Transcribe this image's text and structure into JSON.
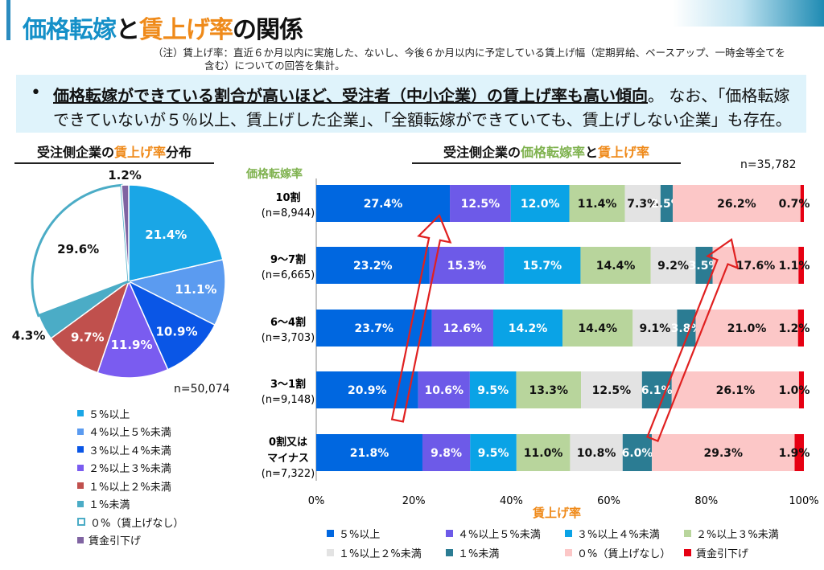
{
  "header": {
    "title_part1": "価格転嫁",
    "title_part2": "と",
    "title_part3": "賃上げ率",
    "title_part4": "の関係",
    "note_line1": "（注）賃上げ率：直近６か月以内に実施した、ないし、今後６か月以内に予定している賃上げ幅（定期昇給、ベースアップ、一時金等全てを",
    "note_line2": "含む）についての回答を集計。"
  },
  "summary": {
    "bullet": "•",
    "line1_emph": "価格転嫁ができている割合が高いほど、受注者（中小企業）の賃上げ率も高い傾向",
    "line1_rest": "。 なお、「価格転嫁",
    "line2": "できていないが５％以上、賃上げした企業」、「全額転嫁ができていても、賃上げしない企業」も存在。"
  },
  "pie_title": {
    "pre": "受注側企業の",
    "accent": "賃上げ率",
    "post": "分布"
  },
  "bar_title": {
    "pre": "受注側企業の",
    "accent1": "価格転嫁率",
    "mid": "と",
    "accent2": "賃上げ率"
  },
  "bar_ylabel": "価格転嫁率",
  "bar_xlabel": "賃上げ率",
  "bar_n": "n=35,782",
  "pie_n": "n=50,074",
  "categories": [
    "５%以上",
    "４%以上５%未満",
    "３%以上４%未満",
    "２%以上３%未満",
    "１%以上２%未満",
    "１%未満",
    "０%（賃上げなし）",
    "賃金引下げ"
  ],
  "colors": {
    "bar": [
      "#0067e0",
      "#6d5ae8",
      "#0aa3e6",
      "#b8d59c",
      "#e3e3e3",
      "#2b7c93",
      "#fcc7c7",
      "#e60012"
    ],
    "pie": [
      "#1aa6e6",
      "#5b9bf0",
      "#0a56e6",
      "#7a5cf0",
      "#c0504d",
      "#4bacc6",
      "#ffffff",
      "#8064a2"
    ],
    "pie_outline": "#4bacc6",
    "arrow": "#e02020",
    "title_blue": "#1590c8",
    "title_orange": "#ef8a1a",
    "green": "#7fb24f"
  },
  "chart_data": [
    {
      "type": "pie",
      "title": "受注側企業の賃上げ率分布",
      "labels": [
        "５%以上",
        "４%以上５%未満",
        "３%以上４%未満",
        "２%以上３%未満",
        "１%以上２%未満",
        "１%未満",
        "０%（賃上げなし）",
        "賃金引下げ"
      ],
      "values": [
        21.4,
        11.1,
        10.9,
        11.9,
        9.7,
        4.3,
        29.6,
        1.2
      ],
      "value_labels": [
        "21.4%",
        "11.1%",
        "10.9%",
        "11.9%",
        "9.7%",
        "4.3%",
        "29.6%",
        "1.2%"
      ],
      "n": "n=50,074",
      "legend": "bottom-left"
    },
    {
      "type": "bar",
      "orientation": "horizontal",
      "stacked": "percent",
      "title": "受注側企業の価格転嫁率と賃上げ率",
      "ylabel": "価格転嫁率",
      "xlabel": "賃上げ率",
      "xlim": [
        0,
        100
      ],
      "xticks": [
        "0%",
        "20%",
        "40%",
        "60%",
        "80%",
        "100%"
      ],
      "categories": [
        {
          "label": "10割",
          "n": "(n=8,944)"
        },
        {
          "label": "9～7割",
          "n": "(n=6,665)"
        },
        {
          "label": "6～4割",
          "n": "(n=3,703)"
        },
        {
          "label": "3～1割",
          "n": "(n=9,148)"
        },
        {
          "label": "0割又は",
          "label2": "マイナス",
          "n": "(n=7,322)"
        }
      ],
      "series": [
        {
          "name": "５%以上",
          "values": [
            27.4,
            23.2,
            23.7,
            20.9,
            21.8
          ]
        },
        {
          "name": "４%以上５%未満",
          "values": [
            12.5,
            15.3,
            12.6,
            10.6,
            9.8
          ]
        },
        {
          "name": "３%以上４%未満",
          "values": [
            12.0,
            15.7,
            14.2,
            9.5,
            9.5
          ]
        },
        {
          "name": "２%以上３%未満",
          "values": [
            11.4,
            14.4,
            14.4,
            13.3,
            11.0
          ]
        },
        {
          "name": "１%以上２%未満",
          "values": [
            7.3,
            9.2,
            9.1,
            12.5,
            10.8
          ]
        },
        {
          "name": "１%未満",
          "values": [
            2.5,
            3.5,
            3.8,
            6.1,
            6.0
          ]
        },
        {
          "name": "０%（賃上げなし）",
          "values": [
            26.2,
            17.6,
            21.0,
            26.1,
            29.3
          ]
        },
        {
          "name": "賃金引下げ",
          "values": [
            0.7,
            1.1,
            1.2,
            1.0,
            1.9
          ]
        }
      ],
      "n": "n=35,782",
      "legend": "bottom"
    }
  ]
}
